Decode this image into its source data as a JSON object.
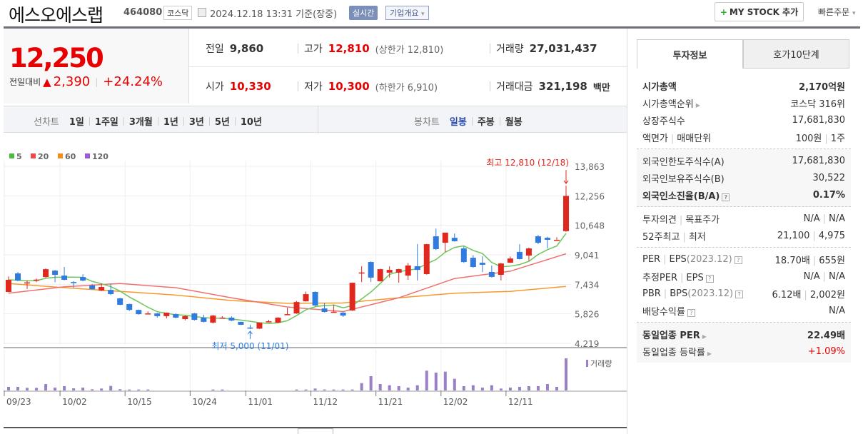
{
  "header": {
    "title": "에스오에스랩",
    "code": "464080",
    "market": "코스닥",
    "date": "2024.12.18 13:31",
    "basis": "기준(장중)",
    "realtime": "실시간",
    "company": "기업개요",
    "company_caret": "▾",
    "mystock": "MY STOCK 추가",
    "mystock_plus": "+",
    "quick_order": "빠른주문",
    "quick_caret": "▾"
  },
  "price": {
    "current": "12,250",
    "change_label": "전일대비",
    "change_icon": "up-triangle",
    "change": "2,390",
    "change_pct": "+24.24%"
  },
  "details": {
    "prev_label": "전일",
    "prev": "9,860",
    "high_label": "고가",
    "high": "12,810",
    "upper_limit": "(상한가 12,810)",
    "volume_label": "거래량",
    "volume": "27,031,437",
    "open_label": "시가",
    "open": "10,330",
    "low_label": "저가",
    "low": "10,300",
    "lower_limit": "(하한가 6,910)",
    "amount_label": "거래대금",
    "amount": "321,198",
    "amount_unit": "백만"
  },
  "toolbar": {
    "line_label": "선차트",
    "line_items": [
      "1일",
      "1주일",
      "3개월",
      "1년",
      "3년",
      "5년",
      "10년"
    ],
    "candle_label": "봉차트",
    "candle_items": [
      "일봉",
      "주봉",
      "월봉"
    ],
    "candle_active": "일봉"
  },
  "tabs": [
    "투자정보",
    "호가10단계"
  ],
  "info": {
    "g1": [
      {
        "label": "시가총액",
        "value": "2,170억원",
        "bold": true
      },
      {
        "label": "시가총액순위",
        "value": "코스닥 316위",
        "arrow": true
      },
      {
        "label": "상장주식수",
        "value": "17,681,830"
      },
      {
        "label": "액면가",
        "label2": "매매단위",
        "value": "100원",
        "value2": "1주"
      }
    ],
    "g2": [
      {
        "label": "외국인한도주식수(A)",
        "value": "17,681,830"
      },
      {
        "label": "외국인보유주식수(B)",
        "value": "30,522"
      },
      {
        "label": "외국인소진율(B/A)",
        "value": "0.17%",
        "bold": true,
        "help": true
      }
    ],
    "g3": [
      {
        "label": "투자의견",
        "label2": "목표주가",
        "value": "N/A",
        "value2": "N/A"
      },
      {
        "label": "52주최고",
        "label2": "최저",
        "value": "21,100",
        "value2": "4,975"
      }
    ],
    "g4": [
      {
        "label": "PER",
        "label2": "EPS",
        "note": "(2023.12)",
        "value": "18.70배",
        "value2": "655원",
        "help": true
      },
      {
        "label": "추정PER",
        "label2": "EPS",
        "value": "N/A",
        "value2": "N/A",
        "help": true
      },
      {
        "label": "PBR",
        "label2": "BPS",
        "note": "(2023.12)",
        "value": "6.12배",
        "value2": "2,002원",
        "help": true
      },
      {
        "label": "배당수익률",
        "value": "N/A",
        "help": true
      }
    ],
    "g5": [
      {
        "label": "동일업종 PER",
        "value": "22.49배",
        "bold": true,
        "arrow": true
      },
      {
        "label": "동일업종 등락률",
        "value": "+1.09%",
        "arrow": true,
        "red": true
      }
    ]
  },
  "chart_data": {
    "type": "candlestick",
    "legend": [
      {
        "name": "5",
        "color": "#4cba3c"
      },
      {
        "name": "20",
        "color": "#f04848"
      },
      {
        "name": "60",
        "color": "#f78b1c"
      },
      {
        "name": "120",
        "color": "#9c59d1"
      }
    ],
    "y_ticks": [
      13863,
      12256,
      10648,
      9041,
      7434,
      5826,
      4219
    ],
    "ylim": [
      4219,
      13863
    ],
    "x_ticks": [
      {
        "label": "09/23",
        "at": 0
      },
      {
        "label": "10/02",
        "at": 6
      },
      {
        "label": "10/15",
        "at": 13
      },
      {
        "label": "10/24",
        "at": 20
      },
      {
        "label": "11/01",
        "at": 26
      },
      {
        "label": "11/12",
        "at": 33
      },
      {
        "label": "11/21",
        "at": 40
      },
      {
        "label": "12/02",
        "at": 47
      },
      {
        "label": "12/11",
        "at": 54
      }
    ],
    "colors": {
      "up": "#e0281f",
      "down": "#2f7be0",
      "ma5": "#6cc65c",
      "ma20": "#f07070",
      "ma60": "#f7982c",
      "volume": "#9b80c8"
    },
    "candles": [
      [
        7020,
        7870,
        7000,
        7680
      ],
      [
        8030,
        8100,
        7600,
        7640
      ],
      [
        7520,
        7650,
        7180,
        7540
      ],
      [
        7650,
        7750,
        7550,
        7690
      ],
      [
        7830,
        8300,
        7800,
        8260
      ],
      [
        8180,
        8220,
        7550,
        7950
      ],
      [
        7910,
        8380,
        7650,
        7680
      ],
      [
        7560,
        7600,
        7250,
        7540
      ],
      [
        7830,
        7980,
        7600,
        7640
      ],
      [
        7370,
        7450,
        7150,
        7170
      ],
      [
        7090,
        7480,
        7060,
        7290
      ],
      [
        7130,
        7480,
        6850,
        6900
      ],
      [
        6670,
        6700,
        6300,
        6320
      ],
      [
        6360,
        6380,
        5980,
        6040
      ],
      [
        6040,
        6060,
        5780,
        5810
      ],
      [
        5840,
        5960,
        5820,
        5850
      ],
      [
        5850,
        5880,
        5620,
        5700
      ],
      [
        5700,
        5900,
        5580,
        5890
      ],
      [
        5810,
        5850,
        5580,
        5620
      ],
      [
        5540,
        5740,
        5470,
        5700
      ],
      [
        5850,
        5880,
        5460,
        5500
      ],
      [
        5620,
        5780,
        5360,
        5390
      ],
      [
        5350,
        5780,
        5300,
        5730
      ],
      [
        5620,
        5700,
        5580,
        5620
      ],
      [
        5620,
        5690,
        5430,
        5460
      ],
      [
        5390,
        5400,
        5220,
        5230
      ],
      [
        5080,
        5230,
        5000,
        5060
      ],
      [
        5020,
        5360,
        5000,
        5350
      ],
      [
        5400,
        5500,
        5360,
        5420
      ],
      [
        5350,
        5640,
        5330,
        5620
      ],
      [
        5800,
        6160,
        5780,
        5810
      ],
      [
        5850,
        6530,
        5830,
        6470
      ],
      [
        6510,
        7040,
        6490,
        6900
      ],
      [
        7020,
        7050,
        6250,
        6280
      ],
      [
        6120,
        6420,
        5900,
        5930
      ],
      [
        5930,
        6330,
        5920,
        5940
      ],
      [
        5890,
        5950,
        5660,
        5730
      ],
      [
        6010,
        7530,
        5990,
        7520
      ],
      [
        8060,
        8420,
        7550,
        8080
      ],
      [
        8650,
        8680,
        7560,
        7800
      ],
      [
        7600,
        8280,
        7580,
        8260
      ],
      [
        8070,
        8420,
        7800,
        8220
      ],
      [
        8070,
        8280,
        7520,
        8260
      ],
      [
        7910,
        8600,
        7680,
        8460
      ],
      [
        8420,
        9630,
        7640,
        8220
      ],
      [
        7990,
        9640,
        7960,
        9620
      ],
      [
        10050,
        10470,
        9300,
        9350
      ],
      [
        9700,
        10260,
        9200,
        10250
      ],
      [
        9970,
        10200,
        9760,
        9780
      ],
      [
        9390,
        9500,
        8600,
        8650
      ],
      [
        8880,
        9020,
        8340,
        8380
      ],
      [
        8610,
        8960,
        8100,
        8500
      ],
      [
        8110,
        8460,
        7800,
        7840
      ],
      [
        7950,
        8600,
        7650,
        8570
      ],
      [
        8610,
        8950,
        8600,
        8840
      ],
      [
        9200,
        9620,
        8780,
        8810
      ],
      [
        9000,
        9440,
        8720,
        9390
      ],
      [
        10050,
        10130,
        9620,
        9700
      ],
      [
        9970,
        10030,
        9390,
        9860
      ],
      [
        9860,
        10000,
        9820,
        9860
      ],
      [
        10330,
        12810,
        10300,
        12250
      ]
    ],
    "candle_format": [
      "open",
      "high",
      "low",
      "close"
    ],
    "ma20_sampled_every_6": [
      6950,
      7300,
      7480,
      7250,
      6700,
      6200,
      5950,
      6700,
      7750,
      8150,
      9100
    ],
    "ma60_sampled_every_6": [
      7480,
      7250,
      7050,
      6850,
      6550,
      6400,
      6420,
      6700,
      6950,
      7050,
      7320
    ],
    "volume_millions": [
      3.0,
      3.0,
      2.2,
      2.2,
      5.4,
      2.4,
      3.6,
      1.8,
      2.4,
      1.0,
      1.6,
      3.8,
      1.0,
      0.8,
      0.8,
      0.8,
      0,
      0,
      0,
      0,
      0,
      0,
      0.8,
      0.8,
      0,
      0,
      0,
      0,
      0,
      0,
      0,
      0.8,
      0.8,
      1.6,
      0.8,
      0.8,
      0.8,
      0.8,
      6.2,
      12,
      5.4,
      4.4,
      3.6,
      2.4,
      4.4,
      16.6,
      15,
      15.8,
      9.8,
      3.6,
      4.4,
      2.4,
      4.4,
      1.6,
      2.4,
      3.0,
      3.6,
      3.6,
      5.4,
      3.0,
      27.0
    ],
    "volume_label": "거래량",
    "annotations": {
      "high": "최고 12,810 (12/18)",
      "low": "최저 5,000 (11/01)",
      "high_value": 12810,
      "high_index": 60,
      "low_value": 5000,
      "low_index": 26
    }
  }
}
